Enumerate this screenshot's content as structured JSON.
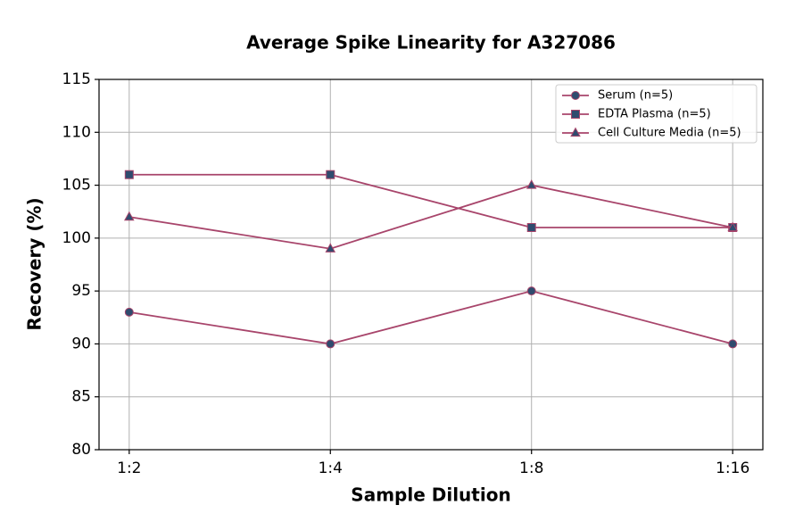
{
  "chart_data": {
    "type": "line",
    "title": "Average Spike Linearity for A327086",
    "x_label": "Sample Dilution",
    "y_label": "Recovery (%)",
    "categories": [
      "1:2",
      "1:4",
      "1:8",
      "1:16"
    ],
    "series": [
      {
        "name": "Serum (n=5)",
        "color": "#a8456b",
        "marker_color": "#2f4b6e",
        "marker": "circle",
        "values": [
          93,
          90,
          95,
          90
        ]
      },
      {
        "name": "EDTA Plasma (n=5)",
        "color": "#a8456b",
        "marker_color": "#2f4b6e",
        "marker": "square",
        "values": [
          106,
          106,
          101,
          101
        ]
      },
      {
        "name": "Cell Culture Media (n=5)",
        "color": "#a8456b",
        "marker_color": "#2f4b6e",
        "marker": "triangle",
        "values": [
          102,
          99,
          105,
          101
        ]
      }
    ],
    "ylim": [
      80,
      115
    ],
    "yticks": [
      80,
      85,
      90,
      95,
      100,
      105,
      110,
      115
    ],
    "grid": true,
    "legend": "upper right"
  }
}
